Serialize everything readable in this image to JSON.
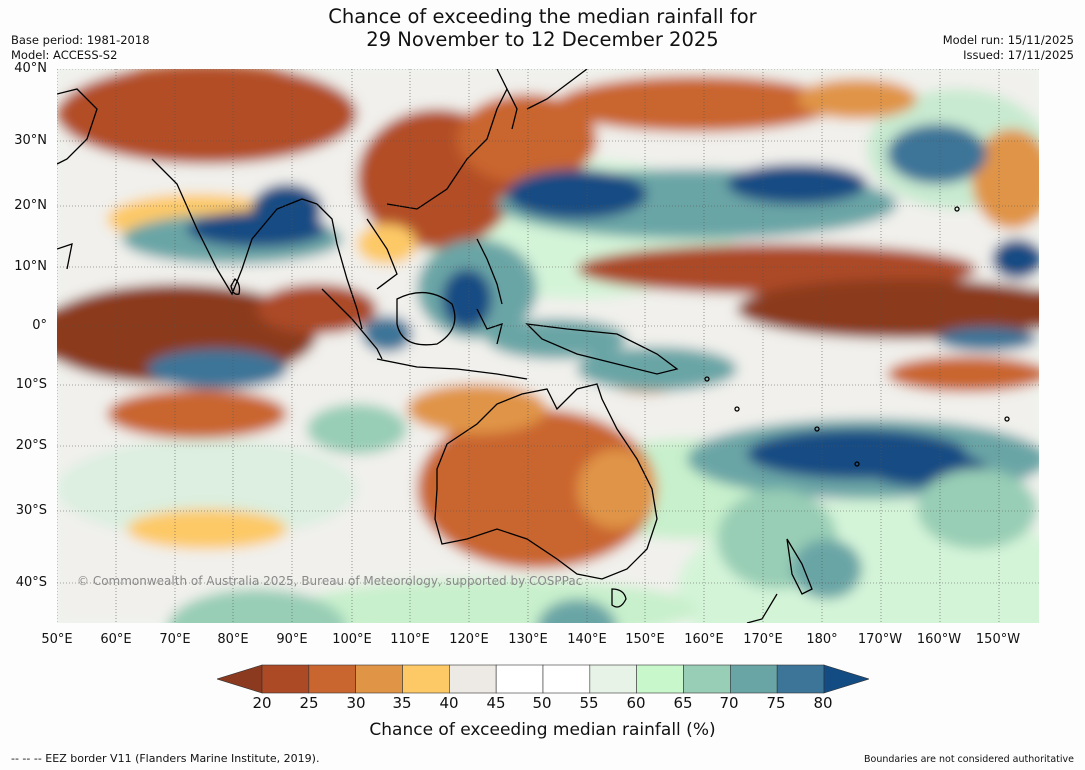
{
  "title": {
    "line1": "Chance of exceeding the median rainfall for",
    "line2": "29 November to 12 December 2025"
  },
  "meta_left": {
    "base_period": "Base period: 1981-2018",
    "model": "Model: ACCESS-S2"
  },
  "meta_right": {
    "model_run": "Model run: 15/11/2025",
    "issued": "Issued: 17/11/2025"
  },
  "lat_labels": [
    "40°N",
    "30°N",
    "20°N",
    "10°N",
    "0°",
    "10°S",
    "20°S",
    "30°S",
    "40°S"
  ],
  "lon_labels": [
    "50°E",
    "60°E",
    "70°E",
    "80°E",
    "90°E",
    "100°E",
    "110°E",
    "120°E",
    "130°E",
    "140°E",
    "150°E",
    "160°E",
    "170°E",
    "180°",
    "170°W",
    "160°W",
    "150°W"
  ],
  "copyright": "© Commonwealth of Australia 2025, Bureau of Meteorology, supported by COSPPac",
  "legend": {
    "title": "Chance of exceeding median rainfall (%)",
    "ticks": [
      "20",
      "25",
      "30",
      "35",
      "40",
      "45",
      "50",
      "55",
      "60",
      "65",
      "70",
      "75",
      "80"
    ],
    "colors": [
      "#8b3a1f",
      "#ac4a26",
      "#c9652f",
      "#e09446",
      "#fdc966",
      "#ede9e4",
      "#ffffff",
      "#ffffff",
      "#e6f3e6",
      "#c8f7cc",
      "#98ceb5",
      "#6aa5a6",
      "#3d7598",
      "#134b83"
    ]
  },
  "footer": {
    "eez": "-- -- -- EEZ border V11 (Flanders Marine Institute, 2019).",
    "boundaries": "Boundaries are not considered authoritative"
  },
  "map_features": {
    "wet_regions": [
      "India-Bay of Bengal",
      "Philippines-Borneo",
      "West Pacific 20°N",
      "Solomon Sea",
      "South Pacific Convergence Zone",
      "Tasman-NZ"
    ],
    "dry_regions": [
      "Arabian Sea-Horn of Africa",
      "Central Pacific 5-10°N",
      "Northern Australia",
      "China",
      "Southern Indian Ocean"
    ]
  }
}
